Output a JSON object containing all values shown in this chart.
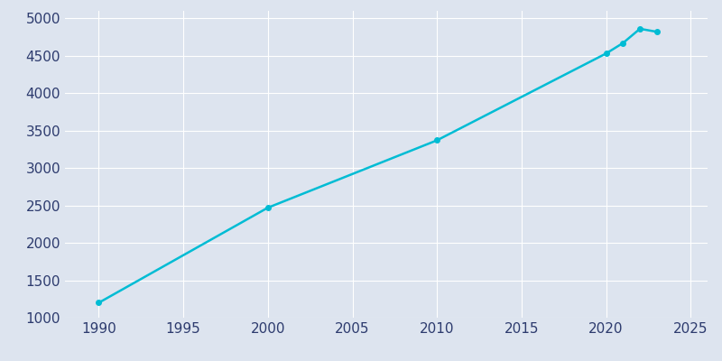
{
  "years": [
    1990,
    2000,
    2010,
    2020,
    2021,
    2022,
    2023
  ],
  "population": [
    1200,
    2470,
    3370,
    4530,
    4670,
    4860,
    4820
  ],
  "line_color": "#00bcd4",
  "marker": "o",
  "marker_size": 4,
  "line_width": 1.8,
  "background_color": "#dde4ef",
  "plot_bg_color": "#dde4ef",
  "grid_color": "#ffffff",
  "tick_color": "#2d3b6e",
  "xlim": [
    1988,
    2026
  ],
  "ylim": [
    1000,
    5100
  ],
  "xticks": [
    1990,
    1995,
    2000,
    2005,
    2010,
    2015,
    2020,
    2025
  ],
  "yticks": [
    1000,
    1500,
    2000,
    2500,
    3000,
    3500,
    4000,
    4500,
    5000
  ],
  "tick_fontsize": 11
}
